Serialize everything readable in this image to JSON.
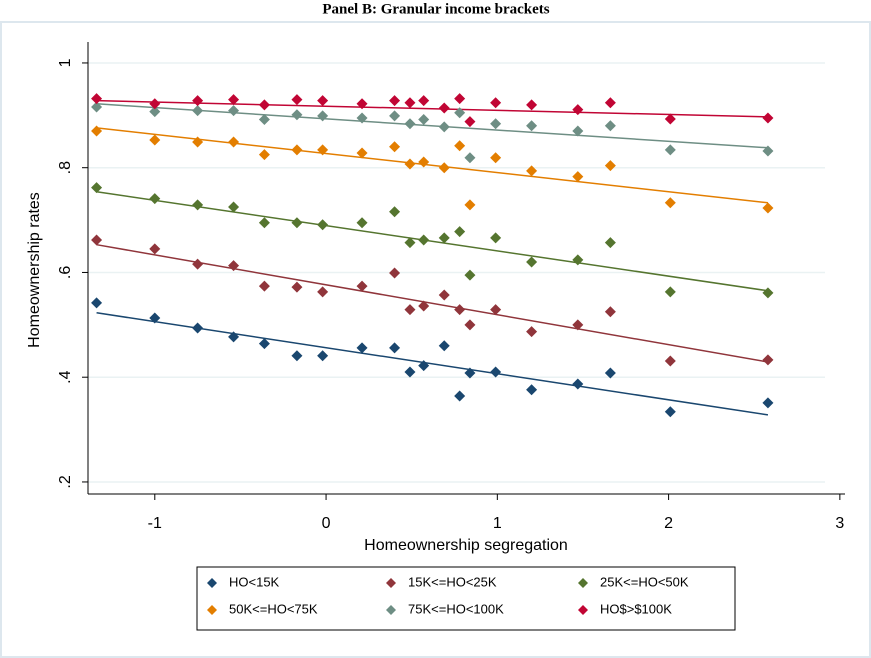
{
  "chart_data": {
    "type": "scatter",
    "title": "Panel B: Granular income brackets",
    "x_label": "Homeownership segregation",
    "y_label": "Homeownership rates",
    "x": [
      -1.34,
      -1.0,
      -0.75,
      -0.54,
      -0.36,
      -0.17,
      -0.02,
      0.21,
      0.4,
      0.49,
      0.57,
      0.69,
      0.78,
      0.84,
      0.99,
      1.2,
      1.47,
      1.66,
      2.01,
      2.58
    ],
    "fit_x": [
      -1.34,
      2.58
    ],
    "series": [
      {
        "name": "HO<15K",
        "color": "#1a476f",
        "values": [
          0.542,
          0.513,
          0.494,
          0.477,
          0.464,
          0.441,
          0.441,
          0.456,
          0.456,
          0.41,
          0.422,
          0.46,
          0.364,
          0.408,
          0.41,
          0.376,
          0.387,
          0.408,
          0.334,
          0.351
        ],
        "fit": [
          0.523,
          0.328
        ]
      },
      {
        "name": "15K<=HO<25K",
        "color": "#90353b",
        "values": [
          0.662,
          0.645,
          0.616,
          0.613,
          0.574,
          0.572,
          0.563,
          0.574,
          0.599,
          0.529,
          0.536,
          0.557,
          0.529,
          0.5,
          0.529,
          0.487,
          0.5,
          0.525,
          0.431,
          0.433
        ],
        "fit": [
          0.653,
          0.429
        ]
      },
      {
        "name": "25K<=HO<50K",
        "color": "#55752f",
        "values": [
          0.762,
          0.741,
          0.729,
          0.725,
          0.695,
          0.695,
          0.691,
          0.695,
          0.716,
          0.657,
          0.662,
          0.666,
          0.678,
          0.595,
          0.666,
          0.62,
          0.624,
          0.657,
          0.563,
          0.561
        ],
        "fit": [
          0.754,
          0.565
        ]
      },
      {
        "name": "50K<=HO<75K",
        "color": "#e37e00",
        "values": [
          0.87,
          0.853,
          0.849,
          0.849,
          0.825,
          0.834,
          0.834,
          0.828,
          0.84,
          0.807,
          0.811,
          0.8,
          0.842,
          0.729,
          0.819,
          0.794,
          0.783,
          0.804,
          0.733,
          0.723
        ],
        "fit": [
          0.876,
          0.733
        ]
      },
      {
        "name": "75K<=HO<100K",
        "color": "#6e8e84",
        "values": [
          0.916,
          0.907,
          0.909,
          0.909,
          0.892,
          0.901,
          0.899,
          0.895,
          0.899,
          0.884,
          0.892,
          0.878,
          0.905,
          0.819,
          0.884,
          0.88,
          0.87,
          0.88,
          0.834,
          0.832
        ],
        "fit": [
          0.922,
          0.838
        ]
      },
      {
        "name": "HO$>$100K",
        "color": "#c10534",
        "values": [
          0.932,
          0.922,
          0.928,
          0.93,
          0.92,
          0.93,
          0.928,
          0.922,
          0.928,
          0.924,
          0.928,
          0.914,
          0.932,
          0.888,
          0.924,
          0.92,
          0.911,
          0.924,
          0.893,
          0.895
        ],
        "fit": [
          0.928,
          0.897
        ]
      }
    ],
    "xlim": [
      -1.39,
      3.03
    ],
    "ylim": [
      0.177,
      1.04
    ],
    "xticks": [
      -1,
      0,
      1,
      2,
      3
    ],
    "yticks": [
      {
        "value": 0.2,
        "label": ".2"
      },
      {
        "value": 0.4,
        "label": ".4"
      },
      {
        "value": 0.6,
        "label": ".6"
      },
      {
        "value": 0.8,
        "label": ".8"
      },
      1
    ],
    "grid": true,
    "legend": "bottom"
  }
}
